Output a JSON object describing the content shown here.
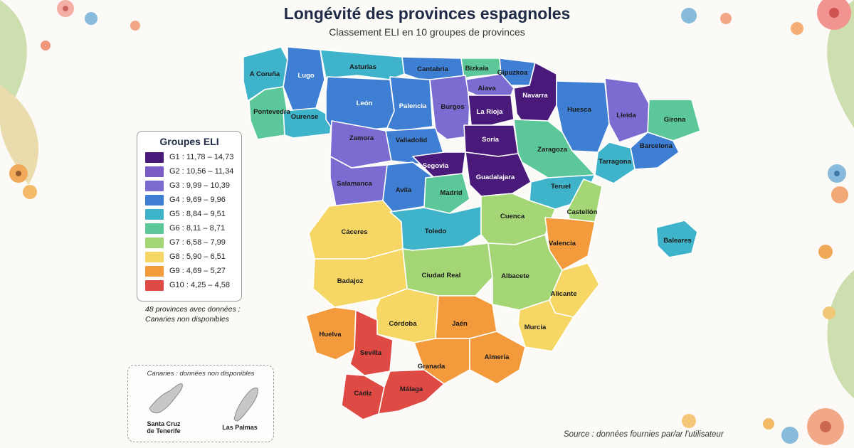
{
  "title": "Longévité des provinces espagnoles",
  "subtitle": "Classement ELI en 10 groupes de provinces",
  "legend": {
    "title": "Groupes ELI",
    "groups": [
      {
        "label": "G1 : 11,78 – 14,73",
        "color": "#4a1a7a"
      },
      {
        "label": "G2 : 10,56 – 11,34",
        "color": "#7b5cc6"
      },
      {
        "label": "G3 : 9,99 – 10,39",
        "color": "#7a6cd0"
      },
      {
        "label": "G4 : 9,69 – 9,96",
        "color": "#3f7fd3"
      },
      {
        "label": "G5 : 8,84 – 9,51",
        "color": "#3fb3c9"
      },
      {
        "label": "G6 : 8,11 – 8,71",
        "color": "#5cc89a"
      },
      {
        "label": "G7 : 6,58 – 7,99",
        "color": "#a4d676"
      },
      {
        "label": "G8 : 5,90 – 6,51",
        "color": "#f6d765"
      },
      {
        "label": "G9 : 4,69 – 5,27",
        "color": "#f29a3c"
      },
      {
        "label": "G10 : 4,25 – 4,58",
        "color": "#e04a44"
      }
    ],
    "note_line1": "48 provinces avec données ;",
    "note_line2": "Canaries non disponibles"
  },
  "canaries": {
    "title": "Canaries : données non disponibles",
    "santa_cruz_line1": "Santa Cruz",
    "santa_cruz_line2": "de Tenerife",
    "las_palmas": "Las Palmas"
  },
  "source": "Source : données fournies par/ar l'utilisateur",
  "provinces": [
    {
      "name": "A Coruña",
      "group": 5
    },
    {
      "name": "Lugo",
      "group": 4
    },
    {
      "name": "Asturias",
      "group": 5
    },
    {
      "name": "Cantabria",
      "group": 4
    },
    {
      "name": "Bizkaia",
      "group": 6
    },
    {
      "name": "Gipuzkoa",
      "group": 4
    },
    {
      "name": "Navarra",
      "group": 1
    },
    {
      "name": "Alava",
      "group": 3
    },
    {
      "name": "Pontevedra",
      "group": 6
    },
    {
      "name": "Ourense",
      "group": 5
    },
    {
      "name": "León",
      "group": 4
    },
    {
      "name": "Palencia",
      "group": 4
    },
    {
      "name": "Burgos",
      "group": 3
    },
    {
      "name": "La Rioja",
      "group": 1
    },
    {
      "name": "Huesca",
      "group": 4
    },
    {
      "name": "Lleida",
      "group": 3
    },
    {
      "name": "Girona",
      "group": 6
    },
    {
      "name": "Barcelona",
      "group": 4
    },
    {
      "name": "Tarragona",
      "group": 5
    },
    {
      "name": "Zamora",
      "group": 3
    },
    {
      "name": "Valladolid",
      "group": 4
    },
    {
      "name": "Soria",
      "group": 1
    },
    {
      "name": "Zaragoza",
      "group": 6
    },
    {
      "name": "Salamanca",
      "group": 3
    },
    {
      "name": "Segovia",
      "group": 1
    },
    {
      "name": "Avila",
      "group": 4
    },
    {
      "name": "Madrid",
      "group": 6
    },
    {
      "name": "Guadalajara",
      "group": 1
    },
    {
      "name": "Teruel",
      "group": 5
    },
    {
      "name": "Castellón",
      "group": 7
    },
    {
      "name": "Cáceres",
      "group": 8
    },
    {
      "name": "Toledo",
      "group": 5
    },
    {
      "name": "Cuenca",
      "group": 7
    },
    {
      "name": "Valencia",
      "group": 9
    },
    {
      "name": "Baleares",
      "group": 5
    },
    {
      "name": "Badajoz",
      "group": 8
    },
    {
      "name": "Ciudad Real",
      "group": 7
    },
    {
      "name": "Albacete",
      "group": 7
    },
    {
      "name": "Alicante",
      "group": 8
    },
    {
      "name": "Huelva",
      "group": 9
    },
    {
      "name": "Córdoba",
      "group": 8
    },
    {
      "name": "Jaén",
      "group": 9
    },
    {
      "name": "Murcia",
      "group": 8
    },
    {
      "name": "Sevilla",
      "group": 10
    },
    {
      "name": "Granada",
      "group": 9
    },
    {
      "name": "Almeria",
      "group": 9
    },
    {
      "name": "Cádiz",
      "group": 10
    },
    {
      "name": "Málaga",
      "group": 10
    }
  ]
}
